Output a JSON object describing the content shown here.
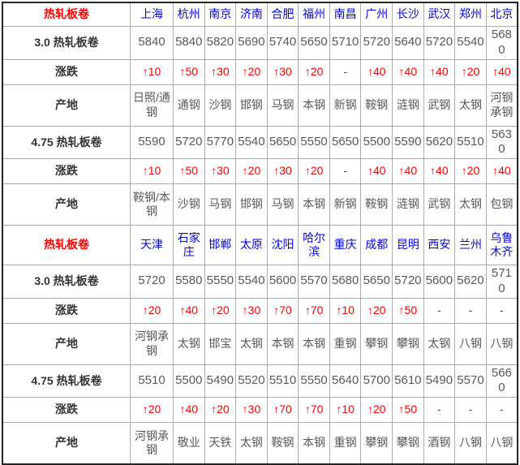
{
  "colors": {
    "header-red": "#fe0000",
    "city-blue": "#0404e4",
    "price-gray": "#595959",
    "change-red": "#fe0000",
    "dash-green": "#008000",
    "label-dark": "#333333",
    "border-inner": "#ababab",
    "border-outer": "#262626"
  },
  "table": {
    "sections": [
      {
        "header_label": "热轧板卷",
        "cities": [
          "上海",
          "杭州",
          "南京",
          "济南",
          "合肥",
          "福州",
          "南昌",
          "广州",
          "长沙",
          "武汉",
          "郑州",
          "北京"
        ],
        "rows": [
          {
            "label": "3.0 热轧板卷",
            "type": "price",
            "values": [
              "5840",
              "5840",
              "5820",
              "5690",
              "5740",
              "5650",
              "5710",
              "5720",
              "5640",
              "5720",
              "5540",
              "5680"
            ]
          },
          {
            "label": "涨跌",
            "type": "change",
            "values": [
              "↑10",
              "↑50",
              "↑30",
              "↑20",
              "↑30",
              "↑20",
              "-",
              "↑40",
              "↑40",
              "↑40",
              "↑20",
              "↑40"
            ]
          },
          {
            "label": "产地",
            "type": "origin",
            "values": [
              "日照/通钢",
              "通钢",
              "沙钢",
              "邯钢",
              "马钢",
              "本钢",
              "新钢",
              "鞍钢",
              "涟钢",
              "武钢",
              "太钢",
              "河钢承钢"
            ]
          },
          {
            "label": "4.75 热轧板卷",
            "type": "price",
            "values": [
              "5590",
              "5720",
              "5770",
              "5540",
              "5650",
              "5550",
              "5650",
              "5500",
              "5590",
              "5620",
              "5510",
              "5630"
            ]
          },
          {
            "label": "涨跌",
            "type": "change",
            "values": [
              "↑10",
              "↑50",
              "↑30",
              "↑20",
              "↑30",
              "↑20",
              "-",
              "↑40",
              "↑40",
              "↑40",
              "↑20",
              "↑40"
            ]
          },
          {
            "label": "产地",
            "type": "origin",
            "values": [
              "鞍钢/本钢",
              "沙钢",
              "马钢",
              "邯钢",
              "马钢",
              "本钢",
              "新钢",
              "鞍钢",
              "涟钢",
              "武钢",
              "太钢",
              "包钢"
            ]
          }
        ]
      },
      {
        "header_label": "热轧板卷",
        "cities": [
          "天津",
          "石家庄",
          "邯郸",
          "太原",
          "沈阳",
          "哈尔滨",
          "重庆",
          "成都",
          "昆明",
          "西安",
          "兰州",
          "乌鲁木齐"
        ],
        "rows": [
          {
            "label": "3.0 热轧板卷",
            "type": "price",
            "values": [
              "5720",
              "5580",
              "5550",
              "5540",
              "5600",
              "5570",
              "5680",
              "5650",
              "5720",
              "5600",
              "5620",
              "5710"
            ]
          },
          {
            "label": "涨跌",
            "type": "change",
            "values": [
              "↑20",
              "↑40",
              "↑20",
              "↑30",
              "↑70",
              "↑70",
              "↑10",
              "↑20",
              "↑50",
              "-",
              "-",
              "-"
            ]
          },
          {
            "label": "产地",
            "type": "origin",
            "values": [
              "河钢承钢",
              "太钢",
              "邯宝",
              "太钢",
              "本钢",
              "本钢",
              "重钢",
              "攀钢",
              "攀钢",
              "太钢",
              "八钢",
              "八钢"
            ]
          },
          {
            "label": "4.75 热轧板卷",
            "type": "price",
            "values": [
              "5510",
              "5500",
              "5490",
              "5520",
              "5510",
              "5550",
              "5640",
              "5700",
              "5610",
              "5490",
              "5570",
              "5660"
            ]
          },
          {
            "label": "涨跌",
            "type": "change",
            "values": [
              "↑20",
              "↑40",
              "↑20",
              "↑30",
              "↑70",
              "↑70",
              "↑10",
              "↑20",
              "↑50",
              "-",
              "-",
              "-"
            ]
          },
          {
            "label": "产地",
            "type": "origin",
            "values": [
              "河钢承钢",
              "敬业",
              "天铁",
              "太钢",
              "鞍钢",
              "本钢",
              "重钢",
              "攀钢",
              "攀钢",
              "酒钢",
              "八钢",
              "八钢"
            ]
          }
        ]
      }
    ]
  }
}
